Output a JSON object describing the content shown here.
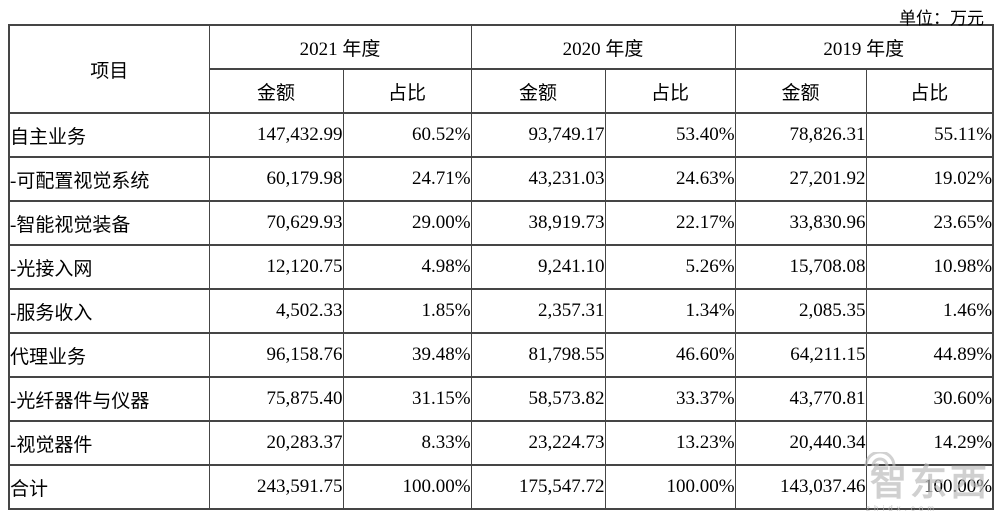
{
  "unit_label": "单位：万元",
  "table": {
    "item_header": "项目",
    "year_headers": [
      "2021 年度",
      "2020 年度",
      "2019 年度"
    ],
    "sub_headers": {
      "amount": "金额",
      "ratio": "占比"
    },
    "rows": [
      {
        "label": "自主业务",
        "bold": true,
        "center": false,
        "values": [
          "147,432.99",
          "60.52%",
          "93,749.17",
          "53.40%",
          "78,826.31",
          "55.11%"
        ]
      },
      {
        "label": "-可配置视觉系统",
        "bold": false,
        "center": false,
        "values": [
          "60,179.98",
          "24.71%",
          "43,231.03",
          "24.63%",
          "27,201.92",
          "19.02%"
        ]
      },
      {
        "label": "-智能视觉装备",
        "bold": false,
        "center": false,
        "values": [
          "70,629.93",
          "29.00%",
          "38,919.73",
          "22.17%",
          "33,830.96",
          "23.65%"
        ]
      },
      {
        "label": "-光接入网",
        "bold": false,
        "center": false,
        "values": [
          "12,120.75",
          "4.98%",
          "9,241.10",
          "5.26%",
          "15,708.08",
          "10.98%"
        ]
      },
      {
        "label": "-服务收入",
        "bold": false,
        "center": false,
        "values": [
          "4,502.33",
          "1.85%",
          "2,357.31",
          "1.34%",
          "2,085.35",
          "1.46%"
        ]
      },
      {
        "label": "代理业务",
        "bold": true,
        "center": false,
        "values": [
          "96,158.76",
          "39.48%",
          "81,798.55",
          "46.60%",
          "64,211.15",
          "44.89%"
        ]
      },
      {
        "label": "-光纤器件与仪器",
        "bold": false,
        "center": false,
        "values": [
          "75,875.40",
          "31.15%",
          "58,573.82",
          "33.37%",
          "43,770.81",
          "30.60%"
        ]
      },
      {
        "label": "-视觉器件",
        "bold": false,
        "center": false,
        "values": [
          "20,283.37",
          "8.33%",
          "23,224.73",
          "13.23%",
          "20,440.34",
          "14.29%"
        ]
      },
      {
        "label": "合计",
        "bold": true,
        "center": true,
        "values": [
          "243,591.75",
          "100.00%",
          "175,547.72",
          "100.00%",
          "143,037.46",
          "100.00%"
        ]
      }
    ]
  },
  "watermark": {
    "text": "智东西",
    "subtext": "zhidx.com"
  }
}
